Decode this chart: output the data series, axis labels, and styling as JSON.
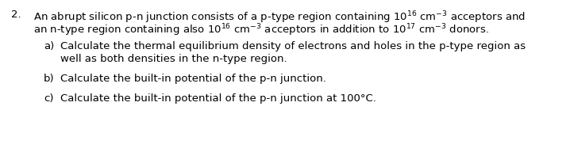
{
  "background_color": "#ffffff",
  "number": "2.",
  "line1": "An abrupt silicon p-n junction consists of a p-type region containing $10^{16}$ cm$^{-3}$ acceptors and",
  "line2": "an n-type region containing also $10^{16}$ cm$^{-3}$ acceptors in addition to $10^{17}$ cm$^{-3}$ donors.",
  "item_a_label": "a)",
  "item_a_line1": "Calculate the thermal equilibrium density of electrons and holes in the p-type region as",
  "item_a_line2": "well as both densities in the n-type region.",
  "item_b_label": "b)",
  "item_b_text": "Calculate the built-in potential of the p-n junction.",
  "item_c_label": "c)",
  "item_c_text": "Calculate the built-in potential of the p-n junction at 100°C.",
  "font_size": 9.5,
  "font_family": "DejaVu Sans"
}
